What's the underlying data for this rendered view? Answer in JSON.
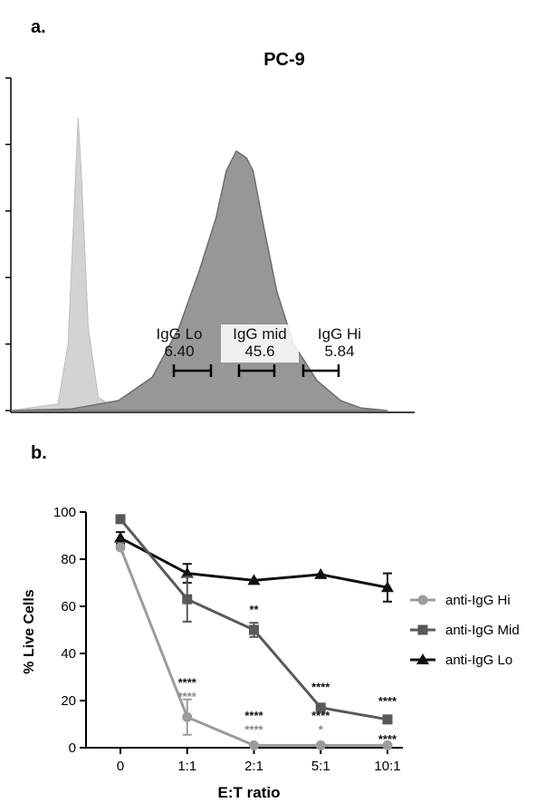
{
  "panel_a": {
    "label": "a.",
    "title": "PC-9",
    "gates": [
      {
        "name": "IgG Lo",
        "value": "6.40"
      },
      {
        "name": "IgG mid",
        "value": "45.6"
      },
      {
        "name": "IgG Hi",
        "value": "5.84"
      }
    ]
  },
  "panel_b": {
    "label": "b."
  },
  "colors": {
    "control_fill": "#d3d3d3",
    "sample_fill": "#8e8e8e",
    "sample_stroke": "#6e6e6e",
    "hi": "#9c9c9c",
    "mid": "#595959",
    "lo": "#111111",
    "sig_gray": "#8a8a8a"
  },
  "chart_data": [
    {
      "type": "area",
      "xlabel": "",
      "ylabel": "",
      "grid": false,
      "series": [
        {
          "x": [
            0,
            0.7,
            0.85,
            0.95,
            1.0,
            1.05,
            1.15,
            1.3,
            1.6
          ],
          "values": [
            0,
            0.02,
            0.2,
            0.65,
            0.88,
            0.7,
            0.25,
            0.04,
            0
          ]
        },
        {
          "x": [
            0,
            0.9,
            1.6,
            2.1,
            2.5,
            2.8,
            3.05,
            3.2,
            3.35,
            3.5,
            3.6,
            3.75,
            3.95,
            4.2,
            4.55,
            4.9,
            5.2,
            5.6
          ],
          "values": [
            0,
            0.005,
            0.03,
            0.1,
            0.25,
            0.42,
            0.58,
            0.72,
            0.78,
            0.76,
            0.72,
            0.56,
            0.36,
            0.2,
            0.09,
            0.03,
            0.008,
            0
          ]
        }
      ]
    },
    {
      "type": "line",
      "categories": [
        "0",
        "1:1",
        "2:1",
        "5:1",
        "10:1"
      ],
      "xlabel": "E:T ratio",
      "ylabel": "% Live Cells",
      "ylim": [
        0,
        100
      ],
      "yticks": [
        "0",
        "20",
        "40",
        "60",
        "80",
        "100"
      ],
      "legend": "right",
      "grid": false,
      "series": [
        {
          "name": "anti-IgG Hi",
          "marker": "circle",
          "values": [
            85,
            13,
            1,
            1,
            1
          ],
          "errors": [
            0,
            7.5,
            0,
            0,
            0
          ]
        },
        {
          "name": "anti-IgG Mid",
          "marker": "square",
          "values": [
            97,
            63,
            50,
            17,
            12
          ],
          "errors": [
            0,
            9.5,
            3,
            0,
            0
          ]
        },
        {
          "name": "anti-IgG Lo",
          "marker": "triangle",
          "values": [
            89,
            74,
            71,
            73.5,
            68
          ],
          "errors": [
            2.5,
            4,
            0,
            0,
            6
          ]
        }
      ],
      "annotations": [
        {
          "category": "1:1",
          "text": "****",
          "y": 26,
          "tone": "dark"
        },
        {
          "category": "1:1",
          "text": "****",
          "y": 20,
          "tone": "gray"
        },
        {
          "category": "2:1",
          "text": "**",
          "y": 57,
          "tone": "dark"
        },
        {
          "category": "2:1",
          "text": "****",
          "y": 12,
          "tone": "dark"
        },
        {
          "category": "2:1",
          "text": "****",
          "y": 6,
          "tone": "gray"
        },
        {
          "category": "5:1",
          "text": "****",
          "y": 24,
          "tone": "dark"
        },
        {
          "category": "5:1",
          "text": "****",
          "y": 12,
          "tone": "dark"
        },
        {
          "category": "5:1",
          "text": "*",
          "y": 6,
          "tone": "gray"
        },
        {
          "category": "10:1",
          "text": "****",
          "y": 18,
          "tone": "dark"
        },
        {
          "category": "10:1",
          "text": "****",
          "y": 2,
          "tone": "dark"
        }
      ]
    }
  ]
}
